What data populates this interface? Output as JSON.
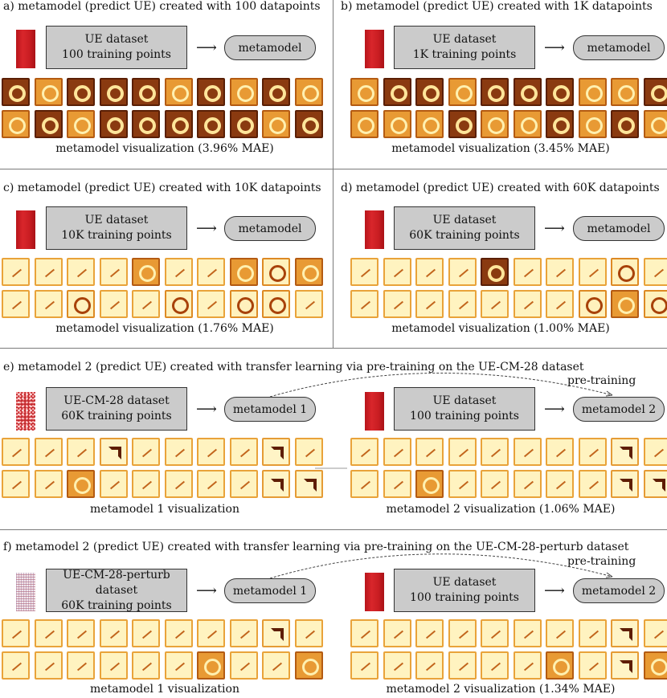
{
  "panels": {
    "a": {
      "title": "a) metamodel (predict UE) created with 100 datapoints",
      "dataset_line1": "UE dataset",
      "dataset_line2": "100 training points",
      "model": "metamodel",
      "caption": "metamodel visualization (3.96% MAE)"
    },
    "b": {
      "title": "b) metamodel (predict UE) created with 1K datapoints",
      "dataset_line1": "UE dataset",
      "dataset_line2": "1K training points",
      "model": "metamodel",
      "caption": "metamodel visualization (3.45% MAE)"
    },
    "c": {
      "title": "c) metamodel (predict UE) created with 10K datapoints",
      "dataset_line1": "UE dataset",
      "dataset_line2": "10K training points",
      "model": "metamodel",
      "caption": "metamodel visualization (1.76% MAE)"
    },
    "d": {
      "title": "d) metamodel (predict UE) created with 60K datapoints",
      "dataset_line1": "UE dataset",
      "dataset_line2": "60K training points",
      "model": "metamodel",
      "caption": "metamodel visualization (1.00% MAE)"
    },
    "e": {
      "title": "e) metamodel 2 (predict UE) created with transfer learning via pre-training on the UE-CM-28 dataset",
      "left_dataset_line1": "UE-CM-28 dataset",
      "left_dataset_line2": "60K training points",
      "left_model": "metamodel 1",
      "right_dataset_line1": "UE dataset",
      "right_dataset_line2": "100 training points",
      "right_model": "metamodel 2",
      "pretraining": "pre-training",
      "left_caption": "metamodel 1 visualization",
      "right_caption": "metamodel 2 visualization (1.06% MAE)"
    },
    "f": {
      "title": "f) metamodel 2 (predict UE) created with transfer learning via pre-training on the UE-CM-28-perturb dataset",
      "left_dataset_line1": "UE-CM-28-perturb dataset",
      "left_dataset_line2": "60K training points",
      "left_model": "metamodel 1",
      "right_dataset_line1": "UE dataset",
      "right_dataset_line2": "100 training points",
      "right_model": "metamodel 2",
      "pretraining": "pre-training",
      "left_caption": "metamodel 1 visualization",
      "right_caption": "metamodel 2 visualization (1.34% MAE)"
    }
  },
  "arrow_symbol": "⟶",
  "filter_grids": {
    "a": [
      "dark",
      "mid",
      "dark",
      "dark",
      "dark",
      "mid",
      "dark",
      "mid",
      "dark",
      "mid",
      "mid",
      "dark",
      "mid",
      "dark",
      "dark",
      "dark",
      "dark",
      "dark",
      "mid",
      "dark"
    ],
    "b": [
      "mid",
      "dark",
      "dark",
      "mid",
      "dark",
      "dark",
      "dark",
      "mid",
      "mid",
      "dark",
      "mid",
      "mid",
      "mid",
      "dark",
      "mid",
      "mid",
      "dark",
      "mid",
      "dark",
      "mid"
    ],
    "c": [
      "pale",
      "pale",
      "pale",
      "pale",
      "mid",
      "pale",
      "pale",
      "mid",
      "ring",
      "mid",
      "pale",
      "pale",
      "ring",
      "pale",
      "pale",
      "ring",
      "pale",
      "ring",
      "ring",
      "pale"
    ],
    "d": [
      "pale",
      "pale",
      "pale",
      "pale",
      "dark",
      "pale",
      "pale",
      "pale",
      "ring",
      "pale",
      "pale",
      "pale",
      "pale",
      "pale",
      "pale",
      "pale",
      "pale",
      "ring",
      "mid",
      "ring"
    ],
    "e_left": [
      "pale",
      "pale",
      "pale",
      "digit",
      "pale",
      "pale",
      "pale",
      "pale",
      "digit",
      "pale",
      "pale",
      "pale",
      "mid",
      "pale",
      "pale",
      "pale",
      "pale",
      "pale",
      "digit",
      "digit"
    ],
    "e_right": [
      "pale",
      "pale",
      "pale",
      "pale",
      "pale",
      "pale",
      "pale",
      "pale",
      "digit",
      "pale",
      "pale",
      "pale",
      "mid",
      "pale",
      "pale",
      "pale",
      "pale",
      "pale",
      "digit",
      "digit"
    ],
    "f_left": [
      "pale",
      "pale",
      "pale",
      "pale",
      "pale",
      "pale",
      "pale",
      "pale",
      "digit",
      "pale",
      "pale",
      "pale",
      "pale",
      "pale",
      "pale",
      "pale",
      "mid",
      "pale",
      "pale",
      "mid"
    ],
    "f_right": [
      "pale",
      "pale",
      "pale",
      "pale",
      "pale",
      "pale",
      "pale",
      "pale",
      "digit",
      "pale",
      "pale",
      "pale",
      "pale",
      "pale",
      "pale",
      "pale",
      "mid",
      "pale",
      "digit",
      "mid"
    ]
  }
}
